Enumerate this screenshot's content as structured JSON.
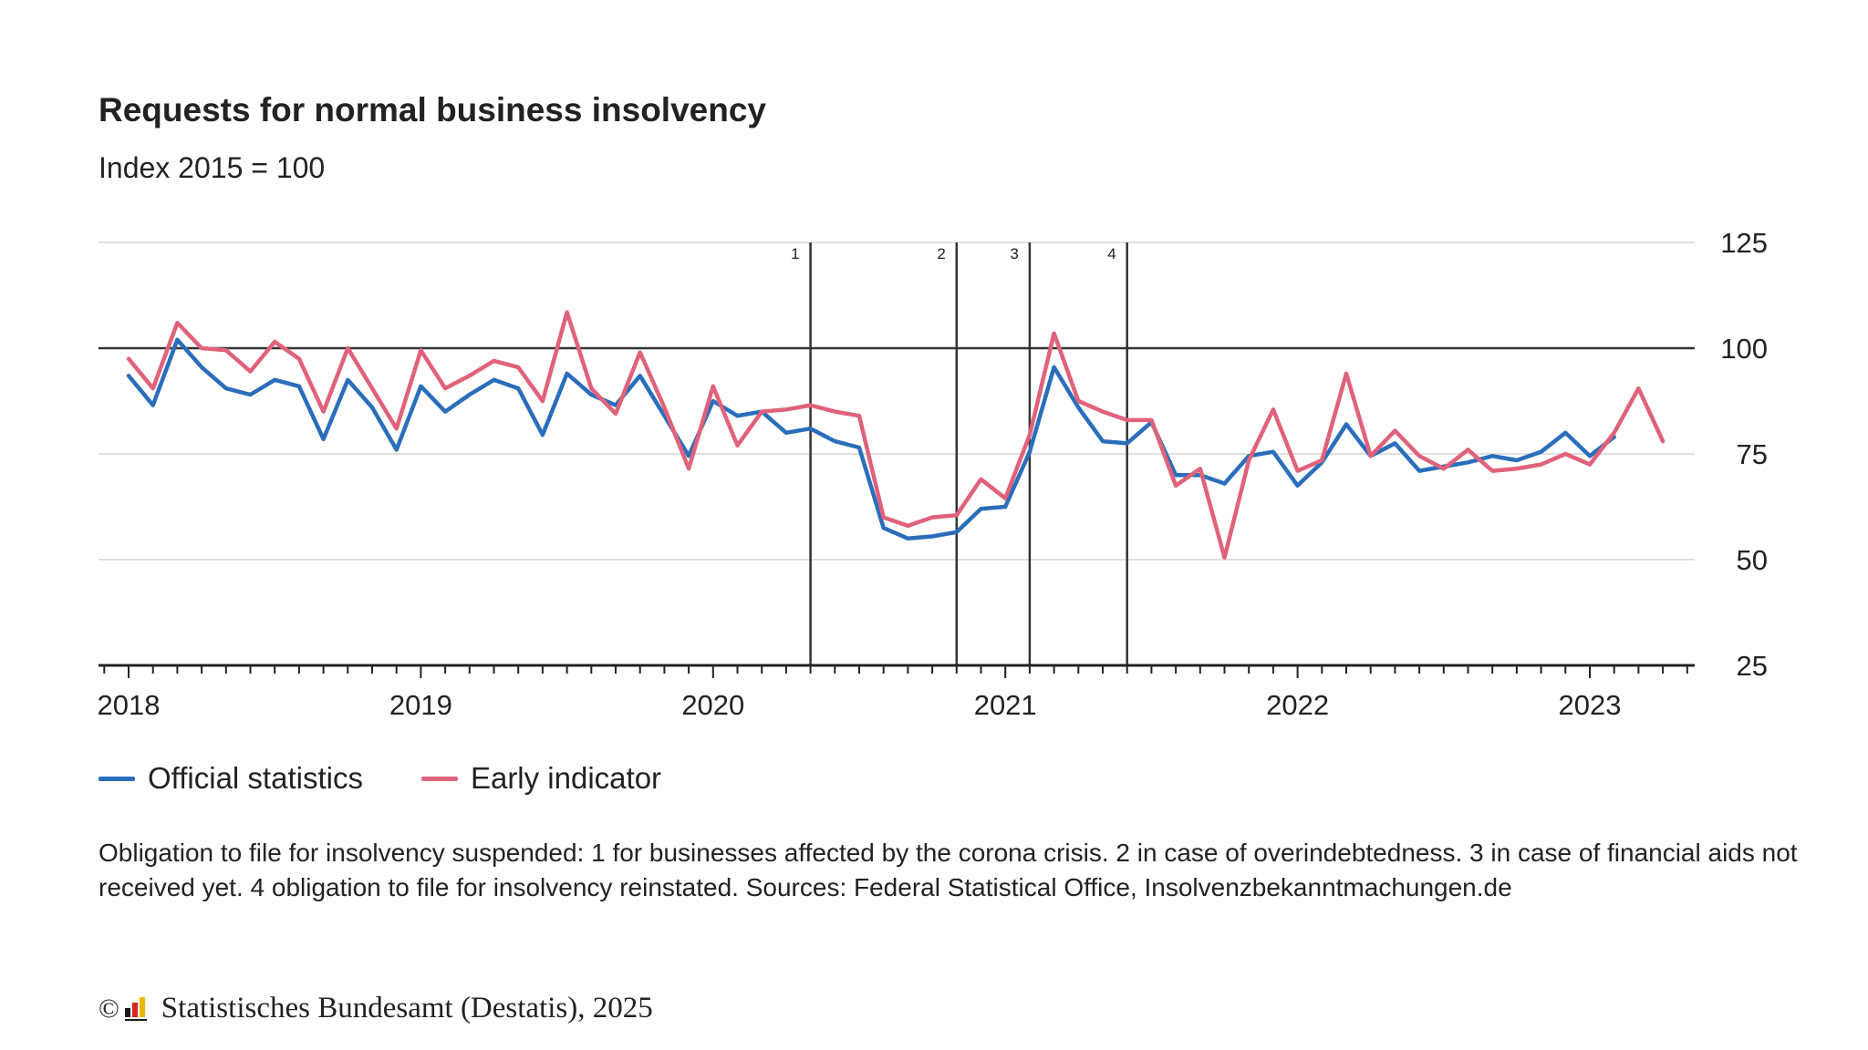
{
  "title": "Requests for normal business insolvency",
  "subtitle": "Index 2015 = 100",
  "legend": {
    "official": "Official statistics",
    "early": "Early indicator"
  },
  "footnote": "Obligation to file for insolvency suspended: 1 for businesses affected by the corona crisis. 2 in case of overindebtedness. 3 in case of financial aids not received yet. 4 obligation to file for insolvency reinstated. Sources: Federal Statistical Office, Insolvenzbekanntmachungen.de",
  "copyright": "Statistisches Bundesamt (Destatis), 2025",
  "colors": {
    "official": "#2a6ebb",
    "early": "#e0627a",
    "reference": "#333333",
    "grid": "#d6d6d6"
  },
  "chart_data": {
    "type": "line",
    "title": "Requests for normal business insolvency",
    "subtitle": "Index 2015 = 100",
    "ylim": [
      25,
      125
    ],
    "yticks": [
      25,
      50,
      75,
      100,
      125
    ],
    "xlim": [
      "2018-01",
      "2023-05"
    ],
    "xtick_labels": [
      "2018",
      "2019",
      "2020",
      "2021",
      "2022",
      "2023"
    ],
    "reference_line": 100,
    "grid": true,
    "legend_position": "bottom-left",
    "x_start": "2018-01",
    "series": [
      {
        "name": "Official statistics",
        "key": "official",
        "values": [
          93.5,
          86.5,
          102,
          95.5,
          90.5,
          89,
          92.5,
          91,
          78.5,
          92.5,
          86,
          76,
          91,
          85,
          89,
          92.5,
          90.5,
          79.5,
          94,
          89,
          86.5,
          93.5,
          84,
          74.5,
          87.5,
          84,
          85,
          80,
          81,
          78,
          76.5,
          57.5,
          55,
          55.5,
          56.5,
          62,
          62.5,
          75.5,
          95.5,
          86,
          78,
          77.5,
          82.5,
          70,
          70,
          68,
          74.5,
          75.5,
          67.5,
          73,
          82,
          74.5,
          77.5,
          71,
          72,
          73,
          74.5,
          73.5,
          75.5,
          80,
          74.5,
          79
        ]
      },
      {
        "name": "Early indicator",
        "key": "early",
        "values": [
          97.5,
          90.5,
          106,
          100,
          99.5,
          94.5,
          101.5,
          97.5,
          85,
          100,
          90.5,
          81,
          99.5,
          90.5,
          93.5,
          97,
          95.5,
          87.5,
          108.5,
          90.5,
          84.5,
          99,
          86,
          71.5,
          91,
          77,
          85,
          85.5,
          86.5,
          85,
          84,
          60,
          58,
          60,
          60.5,
          69,
          64.5,
          79.5,
          103.5,
          87.5,
          85,
          83,
          83,
          67.5,
          71.5,
          50.5,
          73.5,
          85.5,
          71,
          73.5,
          94,
          74.5,
          80.5,
          74.5,
          71.5,
          76,
          71,
          71.5,
          72.5,
          75,
          72.5,
          80,
          90.5,
          78
        ]
      }
    ],
    "markers": [
      {
        "label": "1",
        "date": "2020-05"
      },
      {
        "label": "2",
        "date": "2020-11"
      },
      {
        "label": "3",
        "date": "2021-02"
      },
      {
        "label": "4",
        "date": "2021-06"
      }
    ]
  }
}
